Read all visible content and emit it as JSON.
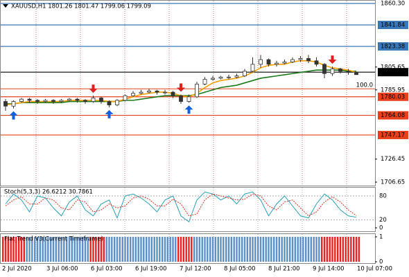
{
  "chart_data": {
    "type": "candlestick",
    "title": "XAUUSD,H1  1801.26 1801.47 1799.06 1799.09",
    "open": [
      1776,
      1772,
      1776,
      1778,
      1777,
      1776,
      1777,
      1776,
      1777,
      1778,
      1777,
      1776,
      1779,
      1776,
      1773,
      1777,
      1781,
      1783,
      1784,
      1785,
      1784,
      1784,
      1781,
      1776,
      1780,
      1791,
      1795,
      1796,
      1797,
      1797,
      1798,
      1802,
      1808,
      1812,
      1808,
      1809,
      1810,
      1812,
      1813,
      1811,
      1808,
      1800,
      1804,
      1802,
      1801.26
    ],
    "high": [
      1778,
      1777,
      1779,
      1779,
      1778,
      1778,
      1778,
      1778,
      1779,
      1779,
      1778,
      1781,
      1780,
      1777,
      1778,
      1782,
      1785,
      1786,
      1787,
      1786,
      1786,
      1785,
      1782,
      1782,
      1793,
      1797,
      1798,
      1798,
      1799,
      1800,
      1804,
      1814,
      1816,
      1813,
      1811,
      1812,
      1814,
      1815,
      1816,
      1814,
      1809,
      1806,
      1805,
      1804,
      1801.47
    ],
    "low": [
      1768,
      1770,
      1775,
      1775,
      1774,
      1775,
      1774,
      1775,
      1776,
      1775,
      1774,
      1775,
      1774,
      1771,
      1772,
      1776,
      1780,
      1782,
      1783,
      1782,
      1782,
      1779,
      1774,
      1775,
      1779,
      1790,
      1794,
      1795,
      1795,
      1796,
      1797,
      1801,
      1805,
      1806,
      1806,
      1808,
      1809,
      1810,
      1809,
      1806,
      1796,
      1798,
      1800,
      1799,
      1799.06
    ],
    "close": [
      1772,
      1776,
      1778,
      1777,
      1776,
      1777,
      1776,
      1777,
      1778,
      1777,
      1776,
      1779,
      1776,
      1773,
      1777,
      1781,
      1783,
      1784,
      1785,
      1784,
      1784,
      1781,
      1776,
      1780,
      1791,
      1795,
      1796,
      1797,
      1797,
      1798,
      1802,
      1808,
      1812,
      1808,
      1809,
      1810,
      1812,
      1813,
      1811,
      1808,
      1800,
      1804,
      1802,
      1801,
      1799.09
    ],
    "ma_fast": {
      "color": "#f5a000",
      "values": [
        1773,
        1774,
        1775,
        1776,
        1776,
        1776,
        1776,
        1776,
        1777,
        1777,
        1777,
        1777,
        1777,
        1776,
        1776,
        1778,
        1780,
        1782,
        1783,
        1784,
        1784,
        1783,
        1781,
        1780,
        1783,
        1788,
        1792,
        1794,
        1795,
        1796,
        1798,
        1801,
        1805,
        1807,
        1808,
        1808,
        1810,
        1811,
        1811,
        1810,
        1807,
        1805,
        1804,
        1803,
        1801
      ]
    },
    "ma_slow": {
      "color": "#1a7a1a",
      "values": [
        1774,
        1774,
        1775,
        1775,
        1775,
        1775,
        1775,
        1775,
        1776,
        1776,
        1776,
        1776,
        1776,
        1776,
        1776,
        1777,
        1777,
        1778,
        1779,
        1780,
        1781,
        1781,
        1781,
        1781,
        1782,
        1784,
        1786,
        1788,
        1789,
        1790,
        1792,
        1794,
        1796,
        1797,
        1798,
        1799,
        1800,
        1801,
        1802,
        1803,
        1803,
        1803,
        1803,
        1802,
        1802
      ]
    },
    "buy_signals": [
      1,
      13,
      23
    ],
    "sell_signals": [
      11,
      22,
      41
    ],
    "ylim": [
      1703.66,
      1863.28
    ],
    "yticks": [
      1706.65,
      1726.45,
      1785.95,
      1805.65
    ],
    "levels": [
      {
        "value": {
          "value": 1860.3,
          "label": "1860.30"
        },
        "color": "#3a78b8",
        "box": false
      },
      {
        "value": 1841.84,
        "color": "#3a78b8",
        "box": true
      },
      {
        "value": 1823.38,
        "color": "#3a78b8",
        "box": true
      },
      {
        "value": 1801.23,
        "color": "#000000",
        "box": true
      },
      {
        "value": 1780.03,
        "color": "#e8401c",
        "box": true
      },
      {
        "value": 1764.08,
        "color": "#e8401c",
        "box": true
      },
      {
        "value": 1747.17,
        "color": "#e8401c",
        "box": true
      }
    ],
    "fib": {
      "level": {
        "value": 100,
        "label": "100.0"
      },
      "price": 1786.9,
      "color": "#e8401c"
    },
    "x_labels": [
      "2 Jul 2020",
      "3 Jul 06:00",
      "6 Jul 03:00",
      "6 Jul 19:00",
      "7 Jul 12:00",
      "8 Jul 05:00",
      "8 Jul 21:00",
      "9 Jul 14:00",
      "10 Jul 07:00"
    ],
    "stoch": {
      "label": "Stoch(5,3,3) 26.6212 30.7861",
      "ylim": [
        0,
        100
      ],
      "yticks": [
        0,
        20,
        80
      ],
      "main": {
        "color": "#2aa0b8",
        "values": [
          60,
          85,
          70,
          40,
          80,
          75,
          50,
          30,
          65,
          80,
          45,
          30,
          60,
          70,
          25,
          80,
          85,
          75,
          60,
          40,
          70,
          80,
          30,
          15,
          70,
          90,
          85,
          70,
          80,
          60,
          85,
          90,
          70,
          30,
          60,
          80,
          55,
          30,
          25,
          60,
          85,
          70,
          45,
          30,
          26.6212
        ]
      },
      "signal": {
        "color": "#e03020",
        "values": [
          55,
          70,
          78,
          60,
          60,
          75,
          70,
          50,
          45,
          70,
          65,
          40,
          45,
          60,
          50,
          55,
          75,
          80,
          72,
          55,
          55,
          72,
          60,
          30,
          35,
          70,
          85,
          80,
          75,
          70,
          72,
          85,
          80,
          55,
          45,
          65,
          70,
          50,
          30,
          40,
          65,
          78,
          65,
          45,
          30.7861
        ]
      }
    },
    "flat_trend": {
      "label": "Flat Trend V3(Current Timeframe)",
      "ylim": [
        0,
        1
      ],
      "yticks": [
        0,
        1
      ],
      "values": [
        1,
        1,
        1,
        1,
        1,
        1,
        1,
        1,
        1,
        1,
        1,
        1,
        1,
        1,
        1,
        1,
        1,
        1,
        1,
        1,
        1,
        1,
        1,
        1,
        1,
        1,
        1,
        1,
        1,
        1,
        1,
        1,
        1,
        1,
        1,
        1,
        1,
        1,
        1,
        1,
        1,
        1,
        1,
        1,
        1
      ],
      "colors": [
        "#ee2020",
        "#ee2020",
        "#ee2020",
        "#5a8fc8",
        "#5a8fc8",
        "#5a8fc8",
        "#5a8fc8",
        "#5a8fc8",
        "#5a8fc8",
        "#5a8fc8",
        "#5a8fc8",
        "#ee2020",
        "#ee2020",
        "#5a8fc8",
        "#5a8fc8",
        "#5a8fc8",
        "#5a8fc8",
        "#5a8fc8",
        "#5a8fc8",
        "#5a8fc8",
        "#5a8fc8",
        "#5a8fc8",
        "#ee2020",
        "#ee2020",
        "#5a8fc8",
        "#5a8fc8",
        "#5a8fc8",
        "#5a8fc8",
        "#5a8fc8",
        "#5a8fc8",
        "#5a8fc8",
        "#5a8fc8",
        "#5a8fc8",
        "#5a8fc8",
        "#5a8fc8",
        "#5a8fc8",
        "#5a8fc8",
        "#5a8fc8",
        "#5a8fc8",
        "#5a8fc8",
        "#ee2020",
        "#ee2020",
        "#ee2020",
        "#ee2020",
        "#ee2020"
      ]
    }
  }
}
